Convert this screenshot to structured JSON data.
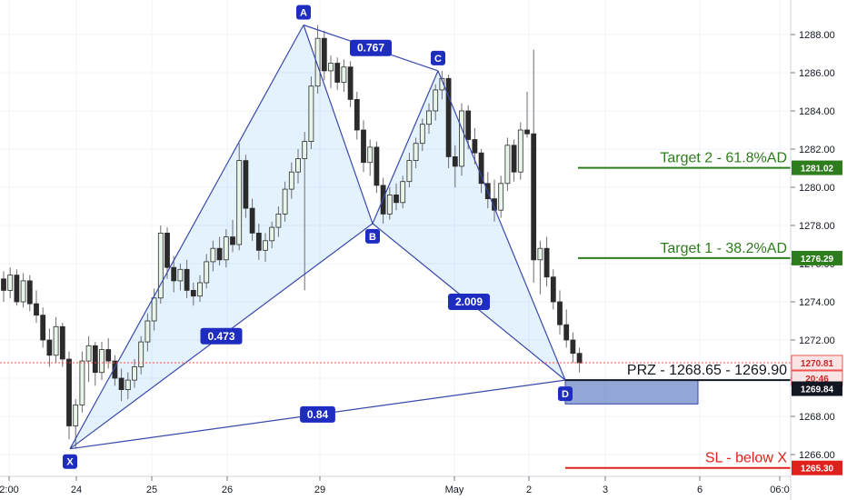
{
  "chart_data": {
    "type": "candlestick",
    "symbol_timeframe": "",
    "y_ticks": [
      "1266.00",
      "1268.00",
      "1270.00",
      "1272.00",
      "1274.00",
      "1276.00",
      "1278.00",
      "1280.00",
      "1282.00",
      "1284.00",
      "1286.00",
      "1288.00"
    ],
    "ylim": [
      1264.7,
      1290.0
    ],
    "x_ticks": [
      "2:00",
      "24",
      "25",
      "26",
      "29",
      "May",
      "2",
      "3",
      "6",
      "06:0"
    ],
    "pattern_points": [
      {
        "label": "X",
        "x": "23 Apr",
        "y": 1266.3
      },
      {
        "label": "A",
        "x": "26 Apr",
        "y": 1288.5
      },
      {
        "label": "B",
        "x": "29 Apr",
        "y": 1278.1
      },
      {
        "label": "C",
        "x": "30 Apr",
        "y": 1286.1
      },
      {
        "label": "D",
        "x": "2 May",
        "y": 1269.9
      }
    ],
    "ratios": [
      {
        "label": "0.473",
        "between": "X-B"
      },
      {
        "label": "0.767",
        "between": "A-C"
      },
      {
        "label": "2.009",
        "between": "B-D"
      },
      {
        "label": "0.84",
        "between": "X-D"
      }
    ],
    "levels": [
      {
        "label": "Target 2 - 61.8%AD",
        "price": 1281.02,
        "price_tag": "1281.02",
        "color": "#2e7d1c"
      },
      {
        "label": "Target 1 - 38.2%AD",
        "price": 1276.29,
        "price_tag": "1276.29",
        "color": "#2e7d1c"
      },
      {
        "label": "PRZ - 1268.65 - 1269.90",
        "price": 1269.9,
        "color": "#131722"
      },
      {
        "label": "SL - below X",
        "price": 1265.3,
        "price_tag": "1265.30",
        "color": "#e0201b"
      }
    ],
    "prz_zone": [
      1268.65,
      1269.9
    ],
    "price_tags": [
      {
        "text": "1270.81",
        "price": 1270.81,
        "color": "#ef5350"
      },
      {
        "text": "20:46",
        "price": 1270.0,
        "color": "#ef5350"
      },
      {
        "text": "1269.84",
        "price": 1269.45,
        "color": "#131722"
      }
    ],
    "last_price": 1270.81,
    "candles": [
      [
        1275.2,
        1275.6,
        1274.0,
        1274.6
      ],
      [
        1274.6,
        1275.8,
        1274.2,
        1275.4
      ],
      [
        1275.4,
        1275.7,
        1273.8,
        1274.0
      ],
      [
        1274.0,
        1275.5,
        1273.7,
        1275.1
      ],
      [
        1275.1,
        1275.4,
        1273.5,
        1273.9
      ],
      [
        1273.9,
        1274.6,
        1272.9,
        1273.3
      ],
      [
        1273.3,
        1273.7,
        1271.6,
        1272.0
      ],
      [
        1272.0,
        1272.6,
        1270.6,
        1271.2
      ],
      [
        1271.2,
        1273.2,
        1270.8,
        1272.7
      ],
      [
        1272.7,
        1272.9,
        1270.6,
        1271.0
      ],
      [
        1271.0,
        1271.4,
        1266.8,
        1267.5
      ],
      [
        1267.5,
        1268.9,
        1266.3,
        1268.6
      ],
      [
        1268.6,
        1271.4,
        1268.2,
        1270.9
      ],
      [
        1270.9,
        1272.2,
        1269.8,
        1271.7
      ],
      [
        1271.7,
        1271.9,
        1269.6,
        1270.3
      ],
      [
        1270.3,
        1271.9,
        1269.9,
        1271.5
      ],
      [
        1271.5,
        1272.1,
        1270.5,
        1270.9
      ],
      [
        1270.9,
        1271.2,
        1269.6,
        1270.0
      ],
      [
        1270.0,
        1270.5,
        1268.8,
        1269.4
      ],
      [
        1269.4,
        1270.3,
        1268.9,
        1269.9
      ],
      [
        1269.9,
        1271.0,
        1269.5,
        1270.6
      ],
      [
        1270.6,
        1272.2,
        1270.2,
        1271.9
      ],
      [
        1271.9,
        1273.4,
        1271.4,
        1273.0
      ],
      [
        1273.0,
        1274.7,
        1272.5,
        1274.2
      ],
      [
        1274.2,
        1278.0,
        1273.9,
        1277.6
      ],
      [
        1277.6,
        1277.9,
        1275.2,
        1275.8
      ],
      [
        1275.8,
        1276.4,
        1274.5,
        1275.1
      ],
      [
        1275.1,
        1276.0,
        1274.6,
        1275.7
      ],
      [
        1275.7,
        1276.2,
        1274.2,
        1274.6
      ],
      [
        1274.6,
        1275.0,
        1273.8,
        1274.3
      ],
      [
        1274.3,
        1275.4,
        1274.0,
        1275.0
      ],
      [
        1275.0,
        1276.5,
        1274.7,
        1276.1
      ],
      [
        1276.1,
        1277.2,
        1275.6,
        1276.8
      ],
      [
        1276.8,
        1277.4,
        1275.9,
        1276.2
      ],
      [
        1276.2,
        1277.8,
        1275.8,
        1277.4
      ],
      [
        1277.4,
        1278.3,
        1276.6,
        1277.0
      ],
      [
        1277.0,
        1282.3,
        1276.7,
        1281.4
      ],
      [
        1281.4,
        1281.7,
        1278.4,
        1278.9
      ],
      [
        1278.9,
        1279.4,
        1277.2,
        1277.6
      ],
      [
        1277.6,
        1278.1,
        1276.2,
        1276.7
      ],
      [
        1276.7,
        1277.6,
        1276.1,
        1277.2
      ],
      [
        1277.2,
        1278.2,
        1276.8,
        1277.9
      ],
      [
        1277.9,
        1279.0,
        1277.4,
        1278.6
      ],
      [
        1278.6,
        1280.3,
        1278.2,
        1279.9
      ],
      [
        1279.9,
        1281.3,
        1279.4,
        1280.8
      ],
      [
        1280.8,
        1282.0,
        1280.2,
        1281.5
      ],
      [
        1281.5,
        1282.9,
        1274.6,
        1282.4
      ],
      [
        1282.4,
        1285.8,
        1282.0,
        1285.3
      ],
      [
        1285.3,
        1288.5,
        1284.9,
        1287.8
      ],
      [
        1287.8,
        1288.2,
        1285.6,
        1286.1
      ],
      [
        1286.1,
        1286.9,
        1285.2,
        1286.5
      ],
      [
        1286.5,
        1286.8,
        1285.1,
        1285.5
      ],
      [
        1285.5,
        1286.7,
        1285.0,
        1286.3
      ],
      [
        1286.3,
        1286.6,
        1284.2,
        1284.6
      ],
      [
        1284.6,
        1285.0,
        1282.5,
        1283.0
      ],
      [
        1283.0,
        1283.5,
        1280.8,
        1281.3
      ],
      [
        1281.3,
        1282.5,
        1280.6,
        1282.1
      ],
      [
        1282.1,
        1282.4,
        1279.7,
        1280.1
      ],
      [
        1280.1,
        1280.5,
        1278.1,
        1278.6
      ],
      [
        1278.6,
        1280.0,
        1278.3,
        1279.6
      ],
      [
        1279.6,
        1280.2,
        1278.8,
        1279.2
      ],
      [
        1279.2,
        1280.6,
        1278.9,
        1280.3
      ],
      [
        1280.3,
        1281.8,
        1280.0,
        1281.4
      ],
      [
        1281.4,
        1282.6,
        1281.0,
        1282.3
      ],
      [
        1282.3,
        1283.6,
        1281.9,
        1283.3
      ],
      [
        1283.3,
        1284.4,
        1282.8,
        1284.0
      ],
      [
        1284.0,
        1285.4,
        1283.5,
        1285.1
      ],
      [
        1285.1,
        1286.1,
        1284.6,
        1285.7
      ],
      [
        1285.7,
        1285.9,
        1281.0,
        1281.6
      ],
      [
        1281.6,
        1282.2,
        1280.0,
        1281.1
      ],
      [
        1281.1,
        1284.4,
        1280.6,
        1284.0
      ],
      [
        1284.0,
        1284.3,
        1282.0,
        1282.5
      ],
      [
        1282.5,
        1283.1,
        1281.2,
        1281.8
      ],
      [
        1281.8,
        1282.0,
        1279.7,
        1280.2
      ],
      [
        1280.2,
        1280.8,
        1278.9,
        1279.4
      ],
      [
        1279.4,
        1280.4,
        1278.2,
        1278.8
      ],
      [
        1278.8,
        1280.6,
        1278.4,
        1280.2
      ],
      [
        1280.2,
        1282.6,
        1279.8,
        1282.2
      ],
      [
        1282.2,
        1282.5,
        1280.3,
        1280.8
      ],
      [
        1280.8,
        1283.4,
        1280.4,
        1283.0
      ],
      [
        1283.0,
        1285.0,
        1282.6,
        1282.8
      ],
      [
        1282.8,
        1287.2,
        1275.0,
        1276.2
      ],
      [
        1276.2,
        1277.2,
        1274.4,
        1276.8
      ],
      [
        1276.8,
        1277.4,
        1274.8,
        1275.3
      ],
      [
        1275.3,
        1275.7,
        1273.6,
        1274.0
      ],
      [
        1274.0,
        1274.6,
        1272.3,
        1272.8
      ],
      [
        1272.8,
        1273.6,
        1271.6,
        1272.0
      ],
      [
        1272.0,
        1272.4,
        1270.8,
        1271.3
      ],
      [
        1271.3,
        1271.6,
        1270.3,
        1270.8
      ]
    ]
  }
}
